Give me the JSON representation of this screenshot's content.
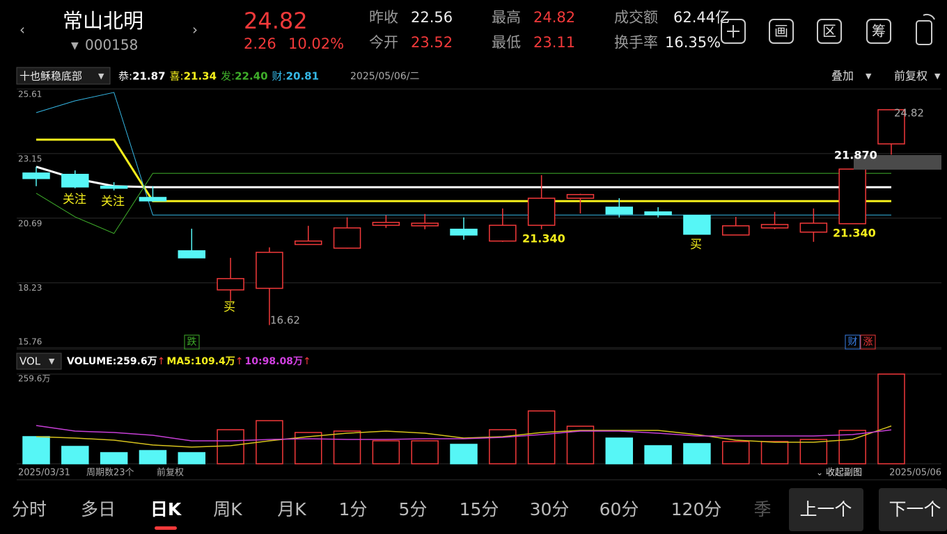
{
  "header": {
    "name": "常山北明",
    "code": "000158",
    "price": "24.82",
    "change": "2.26",
    "change_pct": "10.02%",
    "stats": [
      {
        "label": "昨收",
        "value": "22.56"
      },
      {
        "label": "今开",
        "value": "23.52"
      },
      {
        "label": "最高",
        "value": "24.82"
      },
      {
        "label": "最低",
        "value": "23.11"
      },
      {
        "label": "成交额",
        "value": "62.44亿"
      },
      {
        "label": "换手率",
        "value": "16.35%"
      }
    ]
  },
  "toolbar": [
    "画",
    "区",
    "筹"
  ],
  "chart_data": [
    {
      "type": "candlestick",
      "indicator": "十也稣稳底部",
      "date": "2025/05/06/二",
      "overlay": "叠加",
      "adjust": "前复权",
      "ylim": [
        15.76,
        25.61
      ],
      "yticks": [
        25.61,
        23.15,
        20.69,
        18.23,
        15.76
      ],
      "up_color": "#f2393a",
      "down_color": "#56f6f6",
      "open": [
        22.41,
        22.36,
        21.91,
        21.48,
        19.45,
        17.96,
        18.02,
        19.69,
        19.55,
        20.42,
        20.4,
        20.27,
        19.82,
        20.42,
        21.45,
        21.11,
        20.93,
        20.8,
        20.05,
        20.32,
        20.16,
        20.48,
        23.52
      ],
      "high": [
        22.65,
        22.51,
        22.06,
        21.91,
        20.29,
        19.18,
        19.58,
        20.4,
        20.72,
        20.8,
        20.85,
        20.72,
        21.06,
        22.33,
        21.62,
        21.45,
        21.11,
        20.8,
        20.74,
        20.93,
        21.06,
        22.56,
        24.82
      ],
      "low": [
        21.91,
        21.83,
        21.75,
        21.32,
        19.18,
        17.54,
        16.62,
        19.69,
        19.53,
        20.32,
        20.27,
        19.87,
        19.79,
        20.27,
        20.87,
        20.72,
        20.72,
        20.08,
        20.05,
        20.27,
        19.79,
        20.48,
        23.11
      ],
      "close": [
        22.2,
        21.88,
        21.83,
        21.35,
        19.18,
        18.39,
        19.39,
        19.82,
        20.32,
        20.53,
        20.5,
        20.05,
        20.42,
        21.45,
        21.59,
        20.85,
        20.82,
        20.08,
        20.4,
        20.45,
        20.5,
        22.56,
        24.82
      ],
      "series": [
        {
          "name": "恭:",
          "legend_value": "21.87",
          "color": "#ffffff",
          "width": 3,
          "values": [
            22.65,
            22.2,
            21.91,
            21.87,
            21.87,
            21.87,
            21.87,
            21.87,
            21.87,
            21.87,
            21.87,
            21.87,
            21.87,
            21.87,
            21.87,
            21.87,
            21.87,
            21.87,
            21.87,
            21.87,
            21.87,
            21.87,
            21.87
          ]
        },
        {
          "name": "喜:",
          "legend_value": "21.34",
          "color": "#f5ef1c",
          "width": 3,
          "values": [
            23.68,
            23.68,
            23.68,
            21.34,
            21.34,
            21.34,
            21.34,
            21.34,
            21.34,
            21.34,
            21.34,
            21.34,
            21.34,
            21.34,
            21.34,
            21.34,
            21.34,
            21.34,
            21.34,
            21.34,
            21.34,
            21.34,
            21.34
          ]
        },
        {
          "name": "发:",
          "legend_value": "22.40",
          "color": "#3fae2a",
          "width": 1,
          "values": [
            21.64,
            20.74,
            20.11,
            22.4,
            22.4,
            22.4,
            22.4,
            22.4,
            22.4,
            22.4,
            22.4,
            22.4,
            22.4,
            22.4,
            22.4,
            22.4,
            22.4,
            22.4,
            22.4,
            22.4,
            22.4,
            22.4,
            22.4
          ]
        },
        {
          "name": "财:",
          "legend_value": "20.81",
          "color": "#35b8e6",
          "width": 1,
          "values": [
            24.71,
            25.16,
            25.48,
            20.81,
            20.81,
            20.81,
            20.81,
            20.81,
            20.81,
            20.81,
            20.81,
            20.81,
            20.81,
            20.81,
            20.81,
            20.81,
            20.81,
            20.81,
            20.81,
            20.81,
            20.81,
            20.81,
            20.81
          ]
        }
      ],
      "annotations": [
        "关注",
        "关注",
        "买",
        "买",
        "16.62",
        "21.340",
        "21.340",
        "21.870",
        "24.82",
        "跌",
        "财",
        "涨"
      ]
    },
    {
      "type": "bar",
      "indicator": "VOL",
      "categories": [
        "2025/03/31",
        null,
        null,
        null,
        null,
        null,
        null,
        null,
        null,
        null,
        null,
        null,
        null,
        null,
        null,
        null,
        null,
        null,
        null,
        null,
        null,
        null,
        "2025/05/06"
      ],
      "ylim": [
        0,
        259.6
      ],
      "yticks": [
        {
          "value": 259.6,
          "label": "259.6万"
        }
      ],
      "values": [
        78.5,
        50.3,
        32.2,
        38.2,
        32.2,
        98.6,
        124.8,
        90.5,
        94.6,
        66.4,
        66.4,
        56.3,
        98.6,
        152.9,
        108.7,
        74.4,
        52.3,
        58.4,
        64.4,
        64.4,
        70.4,
        96.6,
        259.6
      ],
      "legend": [
        {
          "label": "VOLUME:",
          "value": "259.6万",
          "arrow": "↑",
          "color": "#ffffff"
        },
        {
          "label": "MA5:",
          "value": "109.4万",
          "arrow": "↑",
          "color": "#f5ef1c"
        },
        {
          "label": "10:",
          "value": "98.08万",
          "arrow": "↑",
          "color": "#d040e0"
        }
      ],
      "series": [
        {
          "name": "MA5",
          "color": "#d6c21d",
          "values": [
            78.5,
            74.4,
            68.4,
            54.3,
            48.3,
            52.3,
            66.4,
            78.5,
            88.5,
            94.6,
            88.5,
            74.4,
            78.5,
            90.5,
            96.6,
            96.6,
            96.6,
            84.5,
            68.4,
            62.4,
            62.4,
            70.4,
            109.4
          ]
        },
        {
          "name": "MA10",
          "color": "#c63fd6",
          "values": [
            110.7,
            94.6,
            90.5,
            82.5,
            66.4,
            66.4,
            70.4,
            72.4,
            70.4,
            70.4,
            72.4,
            72.4,
            76.5,
            84.5,
            94.6,
            94.6,
            88.5,
            80.5,
            80.5,
            80.5,
            80.5,
            84.5,
            98.08
          ]
        }
      ]
    }
  ],
  "footer": {
    "periods": "周期数23个",
    "adjust": "前复权",
    "collapse": "收起副图"
  },
  "tabs": [
    "分时",
    "多日",
    "日K",
    "周K",
    "月K",
    "1分",
    "5分",
    "15分",
    "30分",
    "60分",
    "120分",
    "季"
  ],
  "active_tab": 2,
  "nav": [
    "上一个",
    "下一个"
  ]
}
